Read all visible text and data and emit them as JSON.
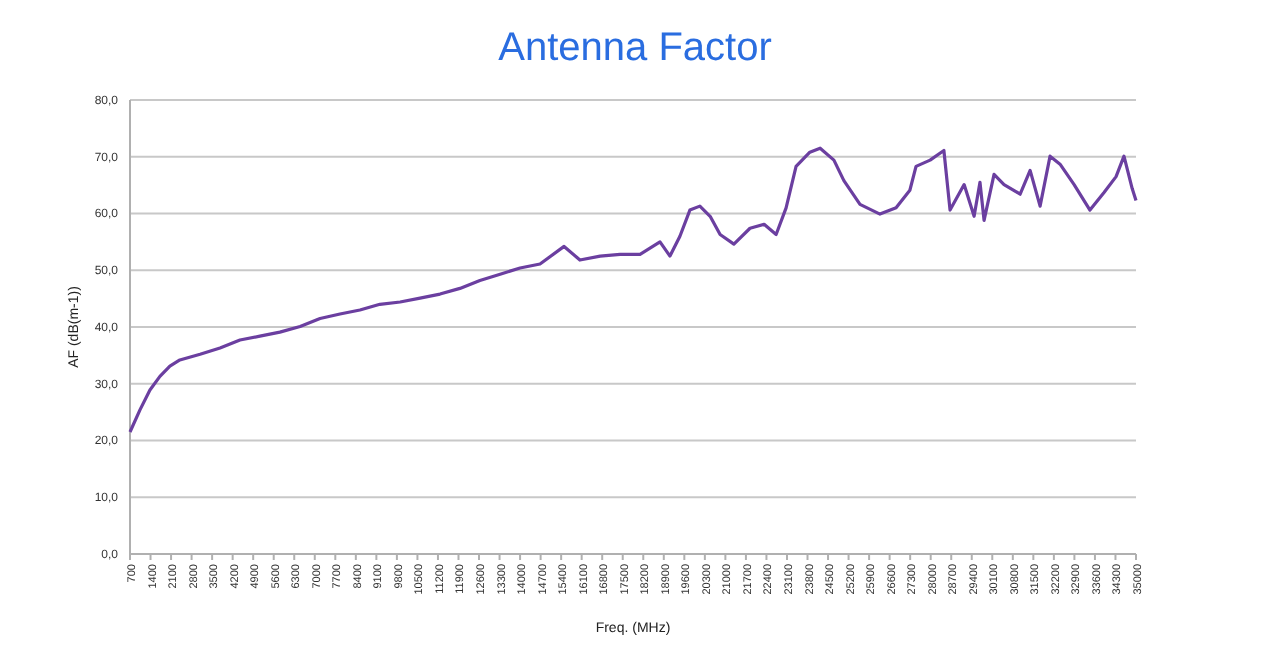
{
  "chart_data": {
    "type": "line",
    "title": "Antenna Factor",
    "xlabel": "Freq. (MHz)",
    "ylabel": "AF (dB(m-1))",
    "x": [
      700,
      1040,
      1380,
      1720,
      2060,
      2400,
      3090,
      3770,
      4450,
      5130,
      5810,
      6500,
      7180,
      7860,
      8540,
      9220,
      9910,
      10590,
      11270,
      11950,
      12630,
      13320,
      14000,
      14680,
      15500,
      16040,
      16730,
      17410,
      18090,
      18770,
      19110,
      19450,
      19790,
      20130,
      20480,
      20820,
      21290,
      21840,
      22320,
      22730,
      23070,
      23410,
      23880,
      24230,
      24700,
      25040,
      25590,
      26270,
      26820,
      27290,
      27500,
      27980,
      28450,
      28660,
      29140,
      29480,
      29680,
      29820,
      30160,
      30500,
      31050,
      31390,
      31730,
      32070,
      32410,
      32890,
      33430,
      33910,
      34320,
      34590,
      34870,
      35000
    ],
    "series": [
      {
        "color": "#6b3fa0",
        "values": [
          21.5,
          25.4,
          28.9,
          31.3,
          33.1,
          34.2,
          35.2,
          36.3,
          37.7,
          38.4,
          39.1,
          40.1,
          41.5,
          42.3,
          43,
          44,
          44.4,
          45.1,
          45.8,
          46.8,
          48.2,
          49.3,
          50.4,
          51.1,
          54.2,
          51.8,
          52.5,
          52.8,
          52.8,
          55,
          52.5,
          56,
          60.6,
          61.3,
          59.5,
          56.3,
          54.6,
          57.4,
          58.1,
          56.3,
          61,
          68.3,
          70.8,
          71.5,
          69.4,
          65.8,
          61.6,
          59.9,
          61,
          64.1,
          68.3,
          69.4,
          71.1,
          60.6,
          65.1,
          59.5,
          65.5,
          58.8,
          66.9,
          65.1,
          63.4,
          67.6,
          61.3,
          70.1,
          68.7,
          65.1,
          60.6,
          63.7,
          66.5,
          70.1,
          64.4,
          62.3
        ]
      }
    ],
    "xlim": [
      700,
      35000
    ],
    "xticks": [
      700,
      1400,
      2100,
      2800,
      3500,
      4200,
      4900,
      5600,
      6300,
      7000,
      7700,
      8400,
      9100,
      9800,
      10500,
      11200,
      11900,
      12600,
      13300,
      14000,
      14700,
      15400,
      16100,
      16800,
      17500,
      18200,
      18900,
      19600,
      20300,
      21000,
      21700,
      22400,
      23100,
      23800,
      24500,
      25200,
      25900,
      26600,
      27300,
      28000,
      28700,
      29400,
      30100,
      30800,
      31500,
      32200,
      32900,
      33600,
      34300,
      35000
    ],
    "ylim": [
      0,
      80
    ],
    "yticks": [
      {
        "value": 0,
        "label": "0,0"
      },
      {
        "value": 10,
        "label": "10,0"
      },
      {
        "value": 20,
        "label": "20,0"
      },
      {
        "value": 30,
        "label": "30,0"
      },
      {
        "value": 40,
        "label": "40,0"
      },
      {
        "value": 50,
        "label": "50,0"
      },
      {
        "value": 60,
        "label": "60,0"
      },
      {
        "value": 70,
        "label": "70,0"
      },
      {
        "value": 80,
        "label": "80,0"
      }
    ],
    "grid": "y",
    "marker": "none",
    "line_style": "solid"
  }
}
